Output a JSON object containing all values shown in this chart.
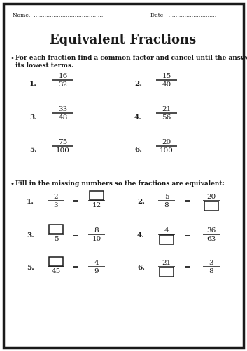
{
  "title": "Equivalent Fractions",
  "name_label": "Name:  …………………………………",
  "date_label": "Date:  ………………………",
  "section1_instruction_1": "For each fraction find a common factor and cancel until the answer is in",
  "section1_instruction_2": "its lowest terms.",
  "section1_fractions": [
    {
      "num": "16",
      "den": "32",
      "label": "1."
    },
    {
      "num": "15",
      "den": "40",
      "label": "2."
    },
    {
      "num": "33",
      "den": "48",
      "label": "3."
    },
    {
      "num": "21",
      "den": "56",
      "label": "4."
    },
    {
      "num": "75",
      "den": "100",
      "label": "5."
    },
    {
      "num": "20",
      "den": "100",
      "label": "6."
    }
  ],
  "section2_instruction": "Fill in the missing numbers so the fractions are equivalent:",
  "section2_problems": [
    {
      "label": "1.",
      "col": 0,
      "row": 0,
      "lnum": "2",
      "lden": "3",
      "rnum": "",
      "rden": "12",
      "lnum_box": false,
      "lden_box": false,
      "rnum_box": true,
      "rden_box": false
    },
    {
      "label": "2.",
      "col": 1,
      "row": 0,
      "lnum": "5",
      "lden": "8",
      "rnum": "20",
      "rden": "",
      "lnum_box": false,
      "lden_box": false,
      "rnum_box": false,
      "rden_box": true
    },
    {
      "label": "3.",
      "col": 0,
      "row": 1,
      "lnum": "",
      "lden": "5",
      "rnum": "8",
      "rden": "10",
      "lnum_box": true,
      "lden_box": false,
      "rnum_box": false,
      "rden_box": false
    },
    {
      "label": "4.",
      "col": 1,
      "row": 1,
      "lnum": "4",
      "lden": "",
      "rnum": "36",
      "rden": "63",
      "lnum_box": false,
      "lden_box": true,
      "rnum_box": false,
      "rden_box": false
    },
    {
      "label": "5.",
      "col": 0,
      "row": 2,
      "lnum": "",
      "lden": "45",
      "rnum": "4",
      "rden": "9",
      "lnum_box": true,
      "lden_box": false,
      "rnum_box": false,
      "rden_box": false
    },
    {
      "label": "6.",
      "col": 1,
      "row": 2,
      "lnum": "21",
      "lden": "",
      "rnum": "3",
      "rden": "8",
      "lnum_box": false,
      "lden_box": true,
      "rnum_box": false,
      "rden_box": false
    }
  ],
  "bg_color": "#ffffff",
  "border_color": "#1a1a1a",
  "text_color": "#1a1a1a"
}
